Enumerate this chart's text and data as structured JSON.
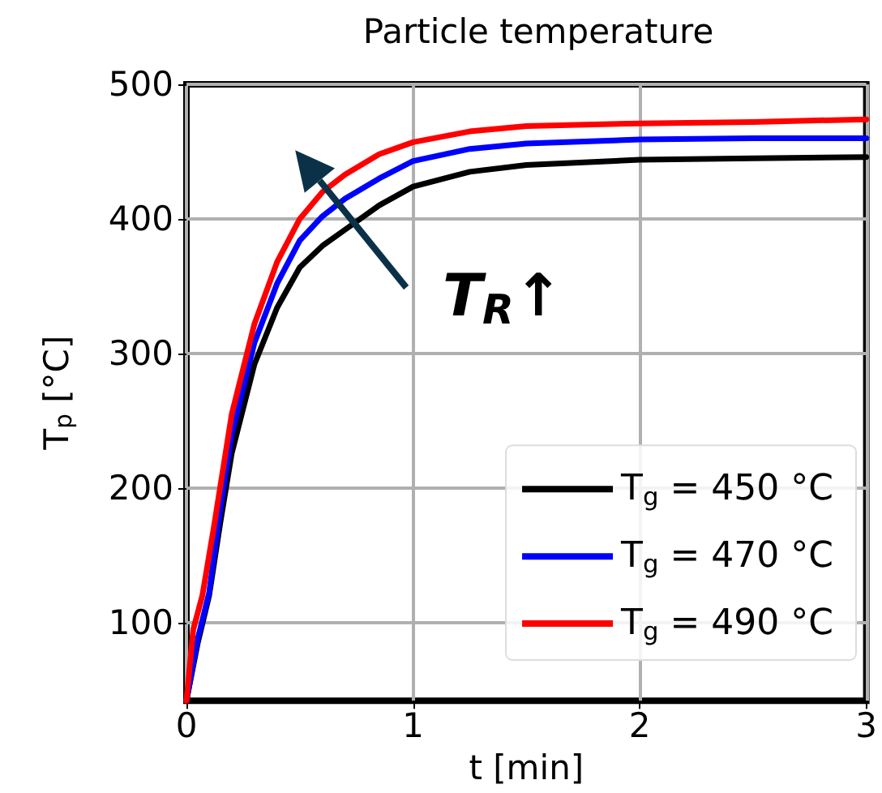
{
  "chart_data": {
    "type": "line",
    "title": "Particle temperature",
    "xlabel": "t [min]",
    "ylabel": "T$_{p}$ [°C]",
    "annotations": [
      "T$_{R}$↑"
    ],
    "series": [
      {
        "name": "T$_{g}$ = 450 °C",
        "color": "#000000",
        "x": [
          0,
          0.05,
          0.1,
          0.15,
          0.2,
          0.3,
          0.4,
          0.5,
          0.6,
          0.7,
          0.85,
          1,
          1.25,
          1.5,
          2,
          2.5,
          3
        ],
        "values": [
          42,
          85,
          120,
          175,
          226,
          292,
          334,
          364,
          380,
          392,
          410,
          424,
          435,
          440,
          444,
          445,
          446
        ]
      },
      {
        "name": "T$_{g}$ = 470 °C",
        "color": "#0000ff",
        "x": [
          0,
          0.05,
          0.1,
          0.15,
          0.2,
          0.3,
          0.4,
          0.5,
          0.6,
          0.7,
          0.85,
          1,
          1.25,
          1.5,
          2,
          2.5,
          3
        ],
        "values": [
          42,
          88,
          122,
          185,
          240,
          308,
          352,
          384,
          402,
          415,
          430,
          443,
          452,
          456,
          459,
          460,
          460
        ]
      },
      {
        "name": "T$_{g}$ = 490 °C",
        "color": "#ff0000",
        "x": [
          0,
          0.03,
          0.07,
          0.12,
          0.2,
          0.3,
          0.4,
          0.5,
          0.6,
          0.7,
          0.85,
          1,
          1.25,
          1.5,
          2,
          2.5,
          3
        ],
        "values": [
          42,
          95,
          120,
          170,
          255,
          322,
          368,
          400,
          420,
          433,
          448,
          457,
          465,
          469,
          471,
          472,
          474
        ]
      }
    ],
    "xlim": [
      0,
      3
    ],
    "xticks": [
      0,
      1,
      2,
      3
    ],
    "ylim": [
      42,
      500
    ],
    "yticks": [
      100,
      200,
      300,
      400,
      500
    ],
    "grid": true,
    "legend": "bottom right",
    "marker": "none",
    "line_style": "solid"
  }
}
